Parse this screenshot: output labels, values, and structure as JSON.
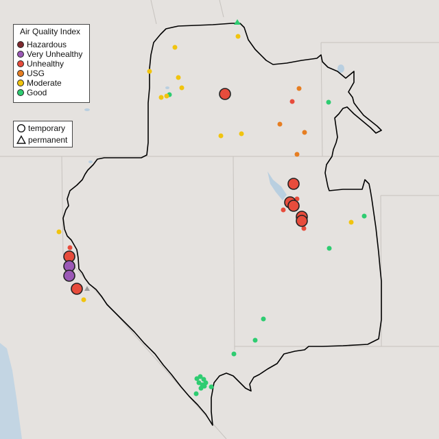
{
  "legend": {
    "title": "Air Quality Index",
    "items": [
      {
        "label": "Hazardous",
        "color": "#7e2a2f"
      },
      {
        "label": "Very Unhealthy",
        "color": "#9b59b6"
      },
      {
        "label": "Unhealthy",
        "color": "#e74c3c"
      },
      {
        "label": "USG",
        "color": "#e67e22"
      },
      {
        "label": "Moderate",
        "color": "#f1c40f"
      },
      {
        "label": "Good",
        "color": "#2ecc71"
      }
    ]
  },
  "shape_legend": {
    "items": [
      {
        "label": "temporary",
        "shape": "circle"
      },
      {
        "label": "permanent",
        "shape": "triangle"
      }
    ]
  }
}
